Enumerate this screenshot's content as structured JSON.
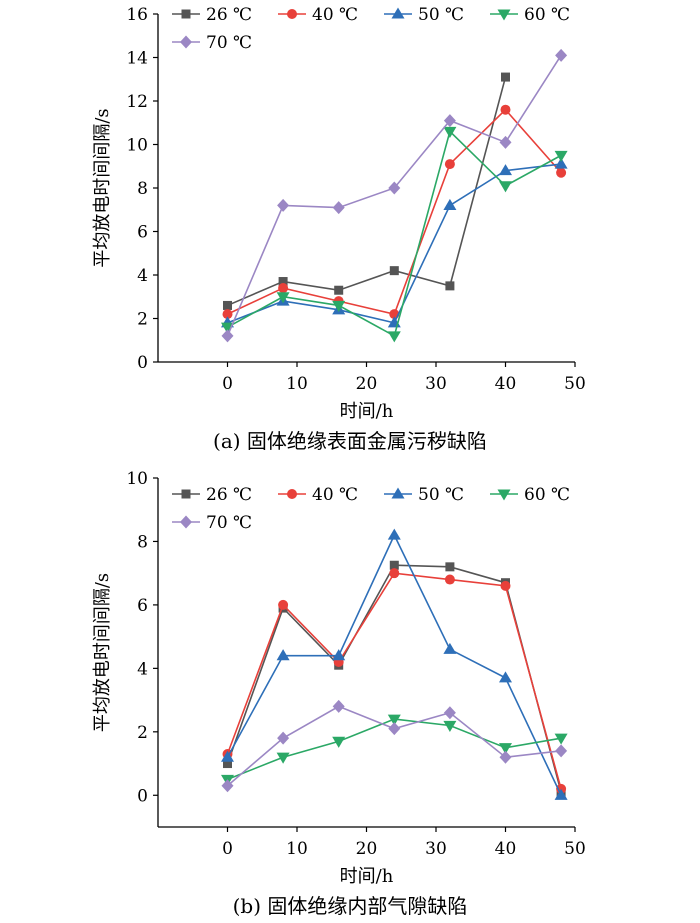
{
  "chart_data": [
    {
      "type": "line",
      "caption": "(a)  固体绝缘表面金属污秽缺陷",
      "xlabel": "时间/h",
      "ylabel": "平均放电时间间隔/s",
      "xlim": [
        -10,
        50
      ],
      "ylim": [
        0,
        16
      ],
      "xticks": [
        0,
        10,
        20,
        30,
        40,
        50
      ],
      "yticks": [
        0,
        2,
        4,
        6,
        8,
        10,
        12,
        14,
        16
      ],
      "x": [
        0,
        8,
        16,
        24,
        32,
        40,
        48
      ],
      "legend": "top",
      "series": [
        {
          "name": "26 ℃",
          "color": "#555555",
          "marker": "square",
          "points": [
            [
              0,
              2.6
            ],
            [
              8,
              3.7
            ],
            [
              16,
              3.3
            ],
            [
              24,
              4.2
            ],
            [
              32,
              3.5
            ],
            [
              40,
              13.1
            ]
          ]
        },
        {
          "name": "40 ℃",
          "color": "#e8403a",
          "marker": "circle",
          "points": [
            [
              0,
              2.2
            ],
            [
              8,
              3.4
            ],
            [
              16,
              2.8
            ],
            [
              24,
              2.2
            ],
            [
              32,
              9.1
            ],
            [
              40,
              11.6
            ],
            [
              48,
              8.7
            ]
          ]
        },
        {
          "name": "50 ℃",
          "color": "#2e6fb8",
          "marker": "triangle-up",
          "points": [
            [
              0,
              1.8
            ],
            [
              8,
              2.8
            ],
            [
              16,
              2.4
            ],
            [
              24,
              1.8
            ],
            [
              32,
              7.2
            ],
            [
              40,
              8.8
            ],
            [
              48,
              9.1
            ]
          ]
        },
        {
          "name": "60 ℃",
          "color": "#2ba866",
          "marker": "triangle-down",
          "points": [
            [
              0,
              1.6
            ],
            [
              8,
              3.0
            ],
            [
              16,
              2.6
            ],
            [
              24,
              1.2
            ],
            [
              32,
              10.6
            ],
            [
              40,
              8.1
            ],
            [
              48,
              9.5
            ]
          ]
        },
        {
          "name": "70 ℃",
          "color": "#9b87c4",
          "marker": "diamond",
          "points": [
            [
              0,
              1.2
            ],
            [
              8,
              7.2
            ],
            [
              16,
              7.1
            ],
            [
              24,
              8.0
            ],
            [
              32,
              11.1
            ],
            [
              40,
              10.1
            ],
            [
              48,
              14.1
            ]
          ]
        }
      ]
    },
    {
      "type": "line",
      "caption": "(b)  固体绝缘内部气隙缺陷",
      "xlabel": "时间/h",
      "ylabel": "平均放电时间间隔/s",
      "xlim": [
        -10,
        50
      ],
      "ylim": [
        -1,
        10
      ],
      "xticks": [
        0,
        10,
        20,
        30,
        40,
        50
      ],
      "yticks": [
        0,
        2,
        4,
        6,
        8,
        10
      ],
      "x": [
        0,
        8,
        16,
        24,
        32,
        40,
        48
      ],
      "legend": "top",
      "series": [
        {
          "name": "26 ℃",
          "color": "#555555",
          "marker": "square",
          "points": [
            [
              0,
              1.0
            ],
            [
              8,
              5.9
            ],
            [
              16,
              4.1
            ],
            [
              24,
              7.25
            ],
            [
              32,
              7.2
            ],
            [
              40,
              6.7
            ],
            [
              48,
              0.1
            ]
          ]
        },
        {
          "name": "40 ℃",
          "color": "#e8403a",
          "marker": "circle",
          "points": [
            [
              0,
              1.3
            ],
            [
              8,
              6.0
            ],
            [
              16,
              4.2
            ],
            [
              24,
              7.0
            ],
            [
              32,
              6.8
            ],
            [
              40,
              6.6
            ],
            [
              48,
              0.2
            ]
          ]
        },
        {
          "name": "50 ℃",
          "color": "#2e6fb8",
          "marker": "triangle-up",
          "points": [
            [
              0,
              1.2
            ],
            [
              8,
              4.4
            ],
            [
              16,
              4.4
            ],
            [
              24,
              8.2
            ],
            [
              32,
              4.6
            ],
            [
              40,
              3.7
            ],
            [
              48,
              0.0
            ]
          ]
        },
        {
          "name": "60 ℃",
          "color": "#2ba866",
          "marker": "triangle-down",
          "points": [
            [
              0,
              0.5
            ],
            [
              8,
              1.2
            ],
            [
              16,
              1.7
            ],
            [
              24,
              2.4
            ],
            [
              32,
              2.2
            ],
            [
              40,
              1.5
            ],
            [
              48,
              1.8
            ]
          ]
        },
        {
          "name": "70 ℃",
          "color": "#9b87c4",
          "marker": "diamond",
          "points": [
            [
              0,
              0.3
            ],
            [
              8,
              1.8
            ],
            [
              16,
              2.8
            ],
            [
              24,
              2.1
            ],
            [
              32,
              2.6
            ],
            [
              40,
              1.2
            ],
            [
              48,
              1.4
            ]
          ]
        }
      ]
    }
  ]
}
